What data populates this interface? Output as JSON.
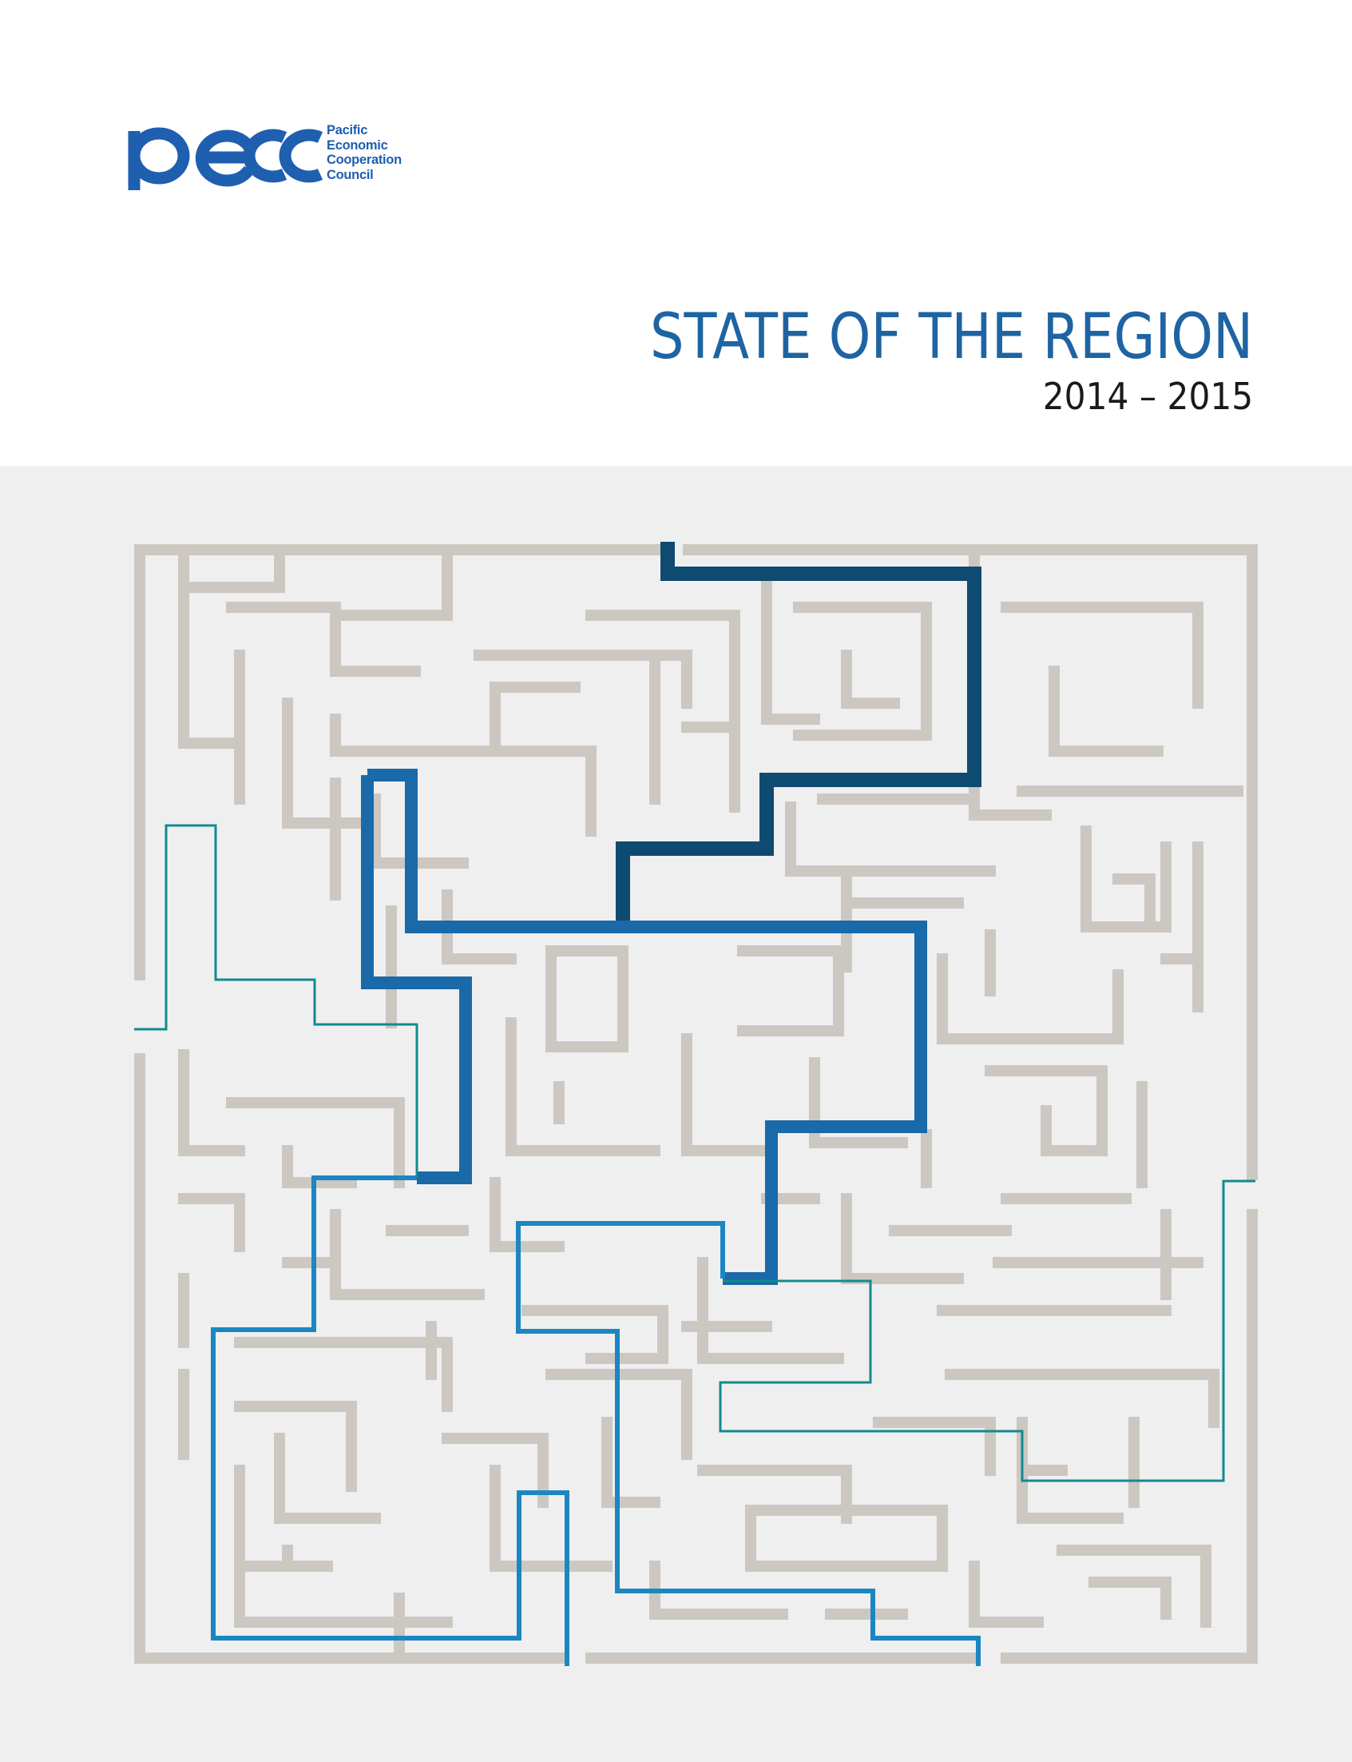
{
  "organization": {
    "logo_letters": "pecc",
    "name_lines": [
      "Pacific",
      "Economic",
      "Cooperation",
      "Council"
    ]
  },
  "report": {
    "title": "STATE OF THE REGION",
    "years": "2014 – 2015"
  },
  "colors": {
    "brand_blue": "#1f5fb0",
    "title_blue": "#1e64a3",
    "maze_wall": "#cdc7c2",
    "cover_background": "#efefef",
    "path_dark": "#0f4a70",
    "path_mid": "#1a69a8",
    "path_light": "#1b86c2",
    "path_teal": "#138a8e"
  },
  "cover_illustration": "maze-with-highlighted-paths"
}
